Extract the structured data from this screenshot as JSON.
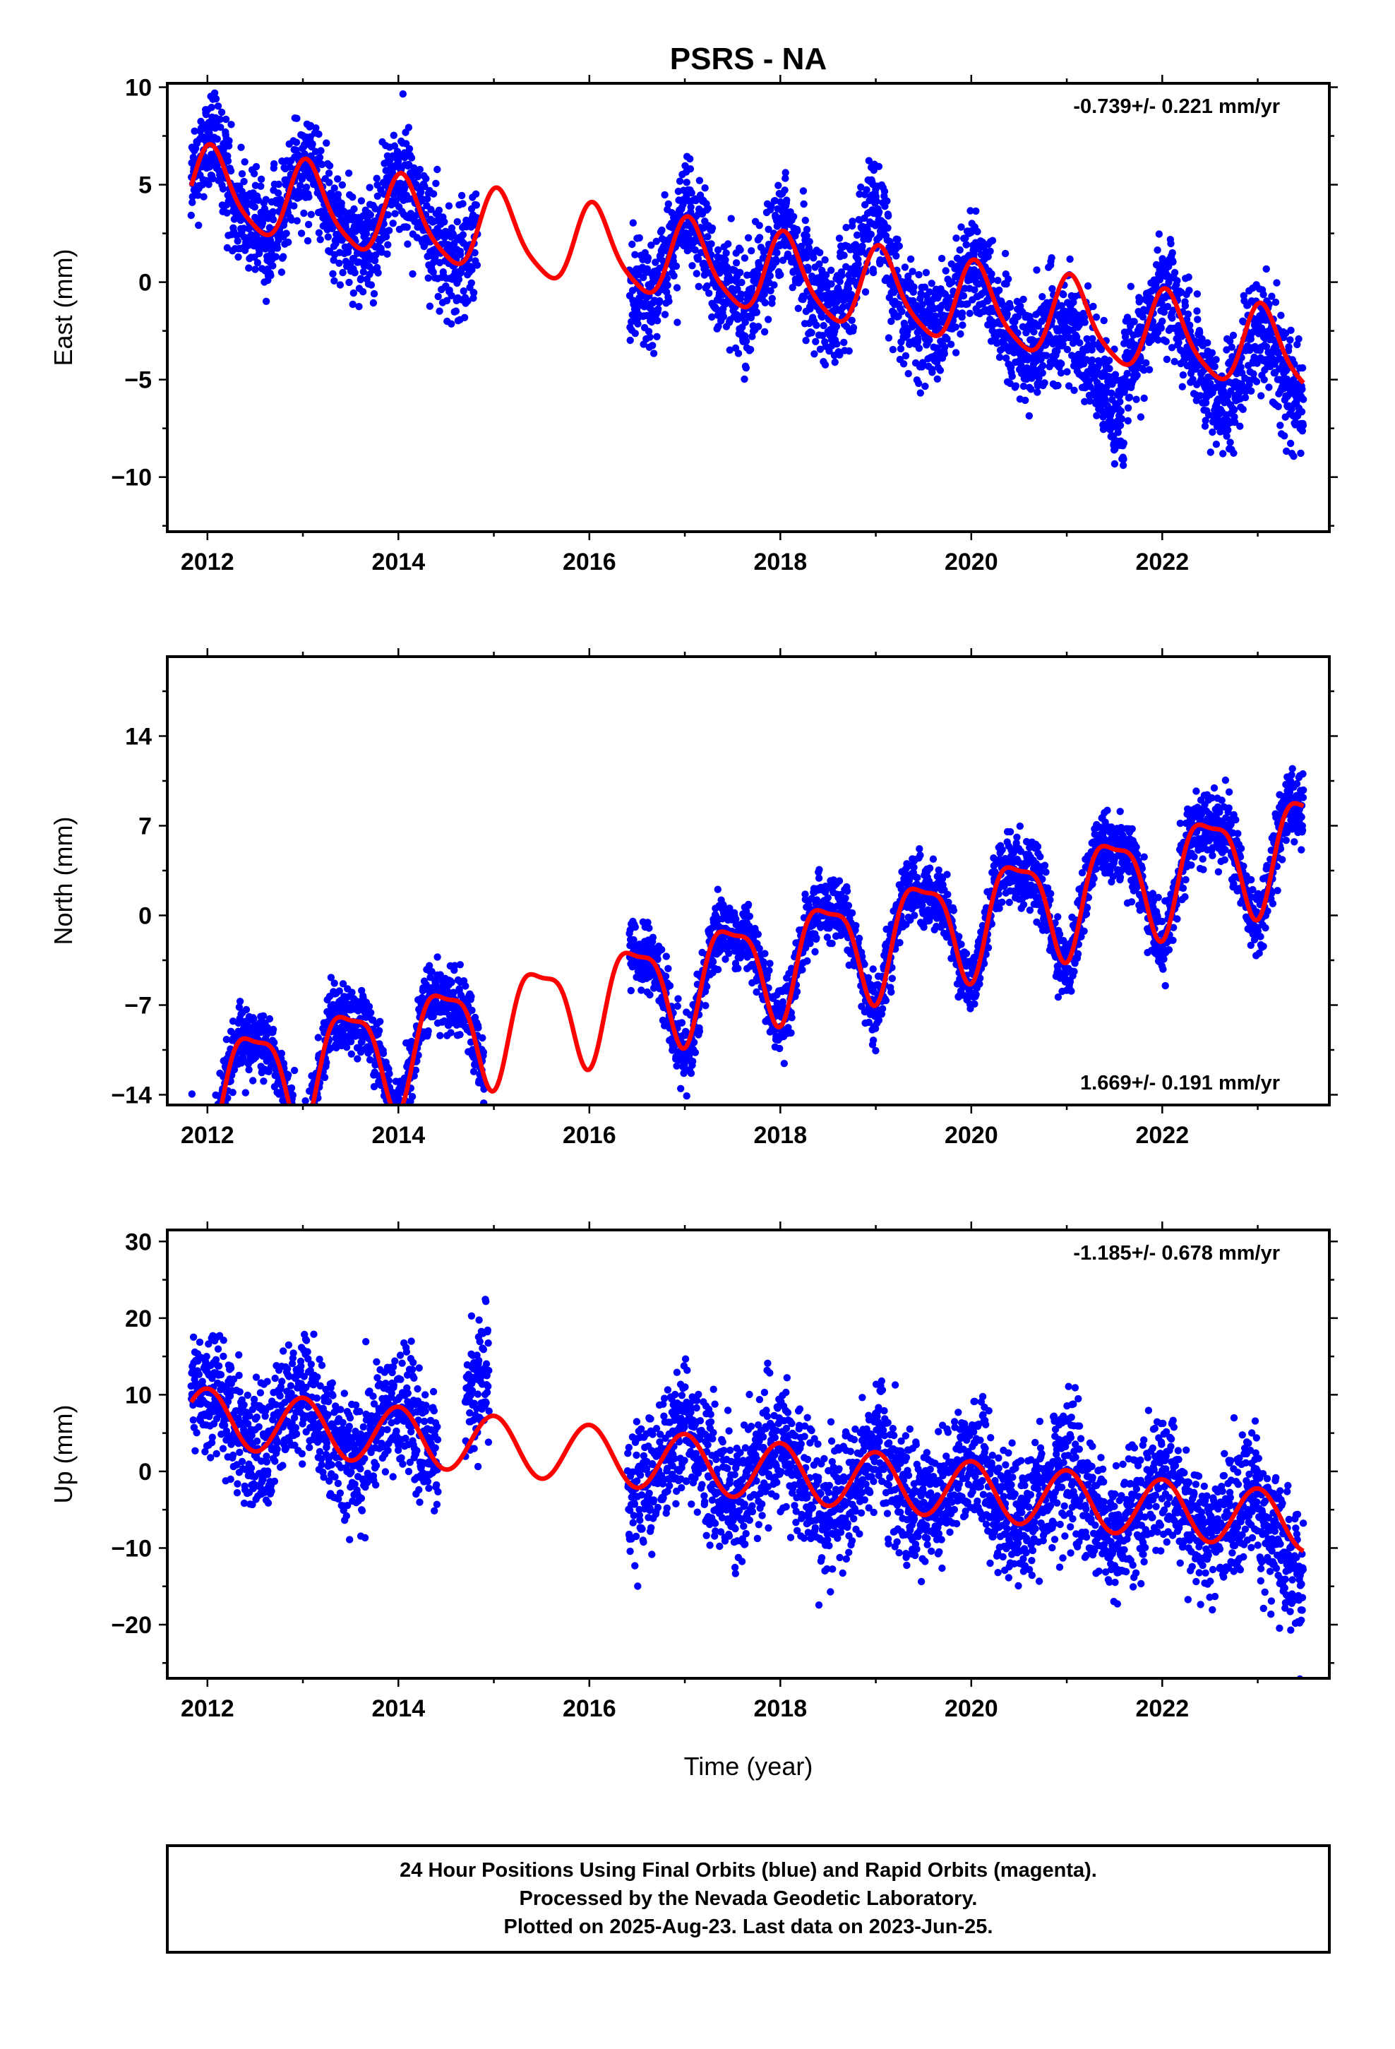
{
  "title": "PSRS - NA",
  "x_label": "Time (year)",
  "footer": {
    "line1": "24 Hour Positions Using Final Orbits (blue) and Rapid Orbits (magenta).",
    "line2": "Processed by the Nevada Geodetic Laboratory.",
    "line3": "Plotted on 2025-Aug-23. Last data on 2023-Jun-25."
  },
  "colors": {
    "points": "#0000ff",
    "fit": "#ff0000",
    "axes": "#000000"
  },
  "chart_data": [
    {
      "type": "scatter",
      "ylabel": "East (mm)",
      "rate_text": "-0.739+/- 0.221 mm/yr",
      "xlim": [
        2011.58,
        2023.75
      ],
      "ylim": [
        -12.8,
        10.2
      ],
      "x_ticks": [
        2012,
        2014,
        2016,
        2018,
        2020,
        2022
      ],
      "y_ticks": [
        -10,
        -5,
        0,
        5,
        10
      ],
      "y_tick_labels": [
        "−10",
        "−5",
        "0",
        "5",
        "10"
      ],
      "grid": false,
      "observations": {
        "segments": [
          [
            2011.83,
            2014.83
          ],
          [
            2016.42,
            2023.48
          ]
        ],
        "intercept_mm": 4.72,
        "rate_mm_per_yr": -0.739,
        "annual_sin": 0.7,
        "annual_cos": 1.9,
        "semiannual_sin": 0.0,
        "semiannual_cos": 0.4,
        "noise_sd_mm": 1.4,
        "steps": [
          {
            "start": 2018.6,
            "end": 2019.1,
            "offset_mm": 1.8
          },
          {
            "start": 2020.85,
            "end": 2021.6,
            "offset_mm": -2.5
          },
          {
            "start": 2022.4,
            "end": 2023.5,
            "offset_mm": -1.2
          }
        ]
      },
      "fit": {
        "x_range": [
          2011.83,
          2023.48
        ],
        "intercept_mm": 4.72,
        "rate_mm_per_yr": -0.739,
        "annual_sin": 0.7,
        "annual_cos": 1.9,
        "semiannual_sin": 0.0,
        "semiannual_cos": 0.4
      }
    },
    {
      "type": "scatter",
      "ylabel": "North (mm)",
      "rate_text": "1.669+/- 0.191 mm/yr",
      "xlim": [
        2011.58,
        2023.75
      ],
      "ylim": [
        -14.8,
        20.2
      ],
      "x_ticks": [
        2012,
        2014,
        2016,
        2018,
        2020,
        2022
      ],
      "y_ticks": [
        -14,
        -7,
        0,
        7,
        14
      ],
      "y_tick_labels": [
        "−14",
        "−7",
        "0",
        "7",
        "14"
      ],
      "grid": false,
      "observations": {
        "segments": [
          [
            2011.83,
            2014.9
          ],
          [
            2016.42,
            2023.48
          ]
        ],
        "intercept_mm": -13.5,
        "rate_mm_per_yr": 1.669,
        "annual_sin": 0.6,
        "annual_cos": -4.0,
        "semiannual_sin": 0.0,
        "semiannual_cos": -1.2,
        "noise_sd_mm": 1.3,
        "steps": []
      },
      "fit": {
        "x_range": [
          2011.83,
          2023.48
        ],
        "intercept_mm": -13.5,
        "rate_mm_per_yr": 1.669,
        "annual_sin": 0.6,
        "annual_cos": -4.0,
        "semiannual_sin": 0.0,
        "semiannual_cos": -1.2
      }
    },
    {
      "type": "scatter",
      "ylabel": "Up (mm)",
      "rate_text": "-1.185+/- 0.678 mm/yr",
      "xlim": [
        2011.58,
        2023.75
      ],
      "ylim": [
        -27,
        31.5
      ],
      "x_ticks": [
        2012,
        2014,
        2016,
        2018,
        2020,
        2022
      ],
      "y_ticks": [
        -20,
        -10,
        0,
        10,
        20,
        30
      ],
      "y_tick_labels": [
        "−20",
        "−10",
        "0",
        "10",
        "20",
        "30"
      ],
      "grid": false,
      "observations": {
        "segments": [
          [
            2011.83,
            2014.42
          ],
          [
            2014.7,
            2014.95
          ],
          [
            2016.4,
            2023.48
          ]
        ],
        "intercept_mm": 7.0,
        "rate_mm_per_yr": -1.185,
        "annual_sin": 0.0,
        "annual_cos": 3.8,
        "semiannual_sin": 0.0,
        "semiannual_cos": 0.0,
        "noise_sd_mm": 4.2,
        "steps": [
          {
            "start": 2014.7,
            "end": 2014.95,
            "offset_mm": 6.0
          },
          {
            "start": 2023.0,
            "end": 2023.5,
            "offset_mm": -4.0
          }
        ]
      },
      "fit": {
        "x_range": [
          2011.83,
          2023.48
        ],
        "intercept_mm": 7.0,
        "rate_mm_per_yr": -1.185,
        "annual_sin": 0.0,
        "annual_cos": 3.8,
        "semiannual_sin": 0.0,
        "semiannual_cos": 0.0
      }
    }
  ]
}
